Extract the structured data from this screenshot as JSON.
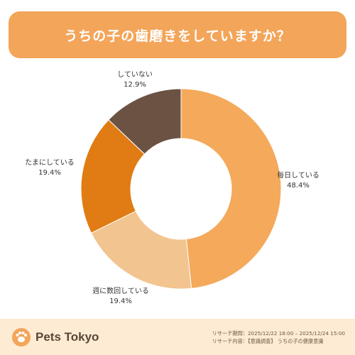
{
  "title": "うちの子の歯磨きをしていますか？",
  "colors": {
    "banner": "#f3a55a",
    "footer_bg": "#fdebd3",
    "logo_mark": "#f3a55a"
  },
  "chart_data": {
    "type": "pie",
    "donut": true,
    "unit": "%",
    "start_angle_deg": 0,
    "direction": "clockwise",
    "slices": [
      {
        "label": "毎日している",
        "value": 48.4,
        "display": "48.4%",
        "color": "#f4a95b"
      },
      {
        "label": "週に数回している",
        "value": 19.4,
        "display": "19.4%",
        "color": "#f2c48f"
      },
      {
        "label": "たまにしている",
        "value": 19.4,
        "display": "19.4%",
        "color": "#e07c13"
      },
      {
        "label": "していない",
        "value": 12.9,
        "display": "12.9%",
        "color": "#6b5243"
      }
    ]
  },
  "footer": {
    "logo_text": "Pets Tokyo",
    "research_period": "リサーチ期間：2025/12/22 18:00 – 2025/12/24 15:00",
    "research_content": "リサーチ内容：【意識調査】 うちの子の健康意識"
  }
}
